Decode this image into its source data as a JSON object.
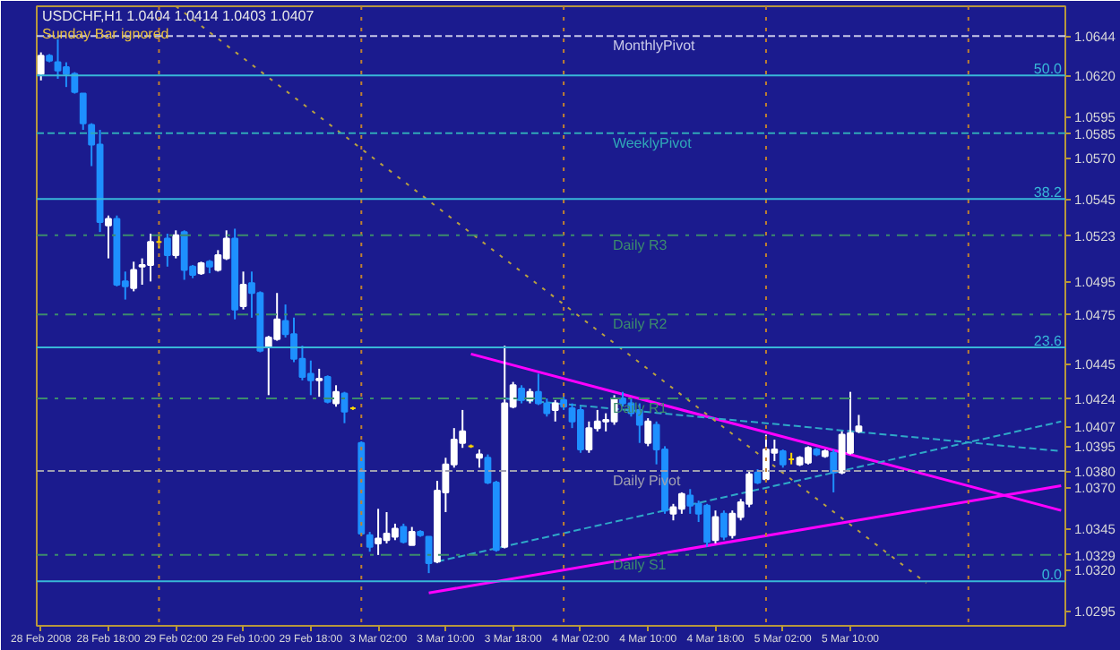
{
  "chart_data": {
    "type": "candlestick",
    "title": "USDCHF,H1  1.0404 1.0414 1.0403 1.0407",
    "annotations": [
      "Sunday Bar ignored",
      {
        "text": "50.0",
        "y": 1.062
      },
      {
        "text": "38.2",
        "y": 1.0545
      },
      {
        "text": "23.6",
        "y": 1.0455
      },
      {
        "text": "0.0",
        "y": 1.0313
      }
    ],
    "categories": [
      "28 Feb 2008",
      null,
      null,
      null,
      null,
      null,
      null,
      null,
      "28 Feb 18:00",
      null,
      null,
      null,
      null,
      null,
      null,
      null,
      "29 Feb 02:00",
      null,
      null,
      null,
      null,
      null,
      null,
      null,
      "29 Feb 10:00",
      null,
      null,
      null,
      null,
      null,
      null,
      null,
      "29 Feb 18:00",
      null,
      null,
      null,
      null,
      null,
      null,
      null,
      "3 Mar 02:00",
      null,
      null,
      null,
      null,
      null,
      null,
      null,
      "3 Mar 10:00",
      null,
      null,
      null,
      null,
      null,
      null,
      null,
      "3 Mar 18:00",
      null,
      null,
      null,
      null,
      null,
      null,
      null,
      "4 Mar 02:00",
      null,
      null,
      null,
      null,
      null,
      null,
      null,
      "4 Mar 10:00",
      null,
      null,
      null,
      null,
      null,
      null,
      null,
      "4 Mar 18:00",
      null,
      null,
      null,
      null,
      null,
      null,
      null,
      "5 Mar 02:00",
      null,
      null,
      null,
      null,
      null,
      null,
      null,
      "5 Mar 10:00",
      null,
      null,
      null,
      null,
      null,
      null,
      null,
      null,
      null,
      null,
      null,
      null,
      null,
      null,
      null,
      null,
      null,
      null,
      null,
      null,
      null,
      null,
      null,
      null,
      null
    ],
    "ohlc": [
      [
        1.0621,
        1.0634,
        1.0617,
        1.0632
      ],
      [
        1.0632,
        1.0633,
        1.0628,
        1.0629
      ],
      [
        1.0628,
        1.0642,
        1.0618,
        1.0623
      ],
      [
        1.0625,
        1.0628,
        1.0613,
        1.0621
      ],
      [
        1.0621,
        1.0622,
        1.0609,
        1.061
      ],
      [
        1.0609,
        1.0609,
        1.0587,
        1.0591
      ],
      [
        1.059,
        1.0591,
        1.0565,
        1.0578
      ],
      [
        1.0578,
        1.0587,
        1.0525,
        1.0531
      ],
      [
        1.0529,
        1.0535,
        1.0509,
        1.0533
      ],
      [
        1.0533,
        1.0535,
        1.0492,
        1.0493
      ],
      [
        1.0495,
        1.0501,
        1.0484,
        1.0492
      ],
      [
        1.0491,
        1.0507,
        1.0489,
        1.0502
      ],
      [
        1.0504,
        1.0509,
        1.0493,
        1.0505
      ],
      [
        1.0505,
        1.0524,
        1.0495,
        1.0519
      ],
      [
        1.0519,
        1.0523,
        1.0515,
        1.0519
      ],
      [
        1.0521,
        1.0524,
        1.0504,
        1.0511
      ],
      [
        1.0511,
        1.0526,
        1.0509,
        1.0523
      ],
      [
        1.0525,
        1.0526,
        1.0496,
        1.0502
      ],
      [
        1.0504,
        1.0505,
        1.0497,
        1.0499
      ],
      [
        1.05,
        1.0507,
        1.0499,
        1.0506
      ],
      [
        1.0507,
        1.0508,
        1.05,
        1.0504
      ],
      [
        1.0502,
        1.0514,
        1.0501,
        1.0511
      ],
      [
        1.0509,
        1.0526,
        1.0508,
        1.0521
      ],
      [
        1.0521,
        1.0527,
        1.0472,
        1.0478
      ],
      [
        1.048,
        1.0501,
        1.0478,
        1.0493
      ],
      [
        1.0494,
        1.0501,
        1.0473,
        1.0488
      ],
      [
        1.0488,
        1.0489,
        1.0452,
        1.0453
      ],
      [
        1.0455,
        1.0462,
        1.0426,
        1.0461
      ],
      [
        1.046,
        1.0488,
        1.0459,
        1.0472
      ],
      [
        1.0471,
        1.0481,
        1.0461,
        1.0463
      ],
      [
        1.0463,
        1.0473,
        1.0446,
        1.0448
      ],
      [
        1.0448,
        1.0456,
        1.0435,
        1.0437
      ],
      [
        1.0439,
        1.0447,
        1.0426,
        1.0435
      ],
      [
        1.0435,
        1.0442,
        1.0425,
        1.0436
      ],
      [
        1.0437,
        1.0438,
        1.0421,
        1.0422
      ],
      [
        1.0421,
        1.0432,
        1.0419,
        1.0428
      ],
      [
        1.0427,
        1.0428,
        1.0409,
        1.0416
      ],
      [
        1.0418,
        1.0419,
        1.0417,
        1.0418
      ],
      [
        1.0397,
        1.0398,
        1.0341,
        1.0342
      ],
      [
        1.0341,
        1.0343,
        1.0331,
        1.0334
      ],
      [
        1.0336,
        1.0357,
        1.0329,
        1.0339
      ],
      [
        1.0338,
        1.0355,
        1.0336,
        1.0342
      ],
      [
        1.034,
        1.0348,
        1.0338,
        1.0345
      ],
      [
        1.0346,
        1.0348,
        1.0336,
        1.0337
      ],
      [
        1.0335,
        1.0346,
        1.0335,
        1.0343
      ],
      [
        1.0343,
        1.0344,
        1.034,
        1.0341
      ],
      [
        1.034,
        1.034,
        1.0318,
        1.0324
      ],
      [
        1.0325,
        1.0374,
        1.0324,
        1.0368
      ],
      [
        1.0367,
        1.0388,
        1.0355,
        1.0384
      ],
      [
        1.0384,
        1.0406,
        1.0382,
        1.0399
      ],
      [
        1.0397,
        1.0417,
        1.0394,
        1.0404
      ],
      [
        1.0395,
        1.0396,
        1.0394,
        1.0395
      ],
      [
        1.0388,
        1.0393,
        1.0382,
        1.039
      ],
      [
        1.0388,
        1.039,
        1.0372,
        1.0373
      ],
      [
        1.0373,
        1.0374,
        1.0331,
        1.0332
      ],
      [
        1.0334,
        1.0456,
        1.0333,
        1.0421
      ],
      [
        1.0419,
        1.0434,
        1.0418,
        1.0432
      ],
      [
        1.043,
        1.0432,
        1.0421,
        1.0423
      ],
      [
        1.0423,
        1.043,
        1.0421,
        1.0428
      ],
      [
        1.0428,
        1.0439,
        1.042,
        1.0421
      ],
      [
        1.0421,
        1.0424,
        1.0413,
        1.0415
      ],
      [
        1.0417,
        1.0423,
        1.041,
        1.0421
      ],
      [
        1.0423,
        1.0426,
        1.0417,
        1.0419
      ],
      [
        1.0418,
        1.0421,
        1.0406,
        1.041
      ],
      [
        1.0417,
        1.0419,
        1.0391,
        1.0393
      ],
      [
        1.0393,
        1.041,
        1.0391,
        1.0406
      ],
      [
        1.0406,
        1.0417,
        1.0404,
        1.041
      ],
      [
        1.041,
        1.0415,
        1.0404,
        1.0411
      ],
      [
        1.041,
        1.0426,
        1.0408,
        1.0424
      ],
      [
        1.0424,
        1.0428,
        1.0419,
        1.0421
      ],
      [
        1.0421,
        1.0424,
        1.0413,
        1.0415
      ],
      [
        1.0417,
        1.0421,
        1.0397,
        1.0408
      ],
      [
        1.0397,
        1.0412,
        1.0395,
        1.041
      ],
      [
        1.0408,
        1.041,
        1.0384,
        1.0393
      ],
      [
        1.0393,
        1.0395,
        1.0354,
        1.0356
      ],
      [
        1.0354,
        1.036,
        1.035,
        1.0358
      ],
      [
        1.0357,
        1.0367,
        1.0354,
        1.0366
      ],
      [
        1.0365,
        1.0369,
        1.0354,
        1.0359
      ],
      [
        1.036,
        1.0362,
        1.0349,
        1.0354
      ],
      [
        1.0359,
        1.036,
        1.0334,
        1.0337
      ],
      [
        1.0338,
        1.0356,
        1.0336,
        1.0352
      ],
      [
        1.0354,
        1.0356,
        1.0338,
        1.034
      ],
      [
        1.0341,
        1.0356,
        1.0339,
        1.0354
      ],
      [
        1.0352,
        1.0363,
        1.035,
        1.0361
      ],
      [
        1.036,
        1.038,
        1.0358,
        1.0378
      ],
      [
        1.0379,
        1.0381,
        1.0372,
        1.0373
      ],
      [
        1.0375,
        1.0402,
        1.0373,
        1.0393
      ],
      [
        1.0391,
        1.0399,
        1.0386,
        1.0393
      ],
      [
        1.0392,
        1.0393,
        1.0382,
        1.0384
      ],
      [
        1.0387,
        1.0391,
        1.0384,
        1.0387
      ],
      [
        1.0384,
        1.0389,
        1.0383,
        1.0388
      ],
      [
        1.0385,
        1.0395,
        1.0384,
        1.0394
      ],
      [
        1.0393,
        1.0394,
        1.0389,
        1.039
      ],
      [
        1.0389,
        1.0393,
        1.0388,
        1.0392
      ],
      [
        1.0391,
        1.0393,
        1.0367,
        1.0379
      ],
      [
        1.0379,
        1.0404,
        1.0378,
        1.0402
      ],
      [
        1.0391,
        1.0428,
        1.039,
        1.0403
      ],
      [
        1.0404,
        1.0414,
        1.0403,
        1.0407
      ],
      null,
      null,
      null,
      null,
      null,
      null,
      null,
      null,
      null,
      null,
      null,
      null,
      null,
      null,
      null,
      null,
      null,
      null,
      null,
      null,
      null,
      null,
      null,
      null
    ],
    "colors": [
      "#ffffff",
      "#1e90ff",
      "#1e90ff",
      "#1e90ff",
      "#1e90ff",
      "#1e90ff",
      "#1e90ff",
      "#1e90ff",
      "#ffffff",
      "#1e90ff",
      "#1e90ff",
      "#ffffff",
      "#ffffff",
      "#ffffff",
      "#ffd700",
      "#1e90ff",
      "#ffffff",
      "#1e90ff",
      "#1e90ff",
      "#ffffff",
      "#1e90ff",
      "#ffffff",
      "#ffffff",
      "#1e90ff",
      "#ffffff",
      "#1e90ff",
      "#1e90ff",
      "#ffffff",
      "#ffffff",
      "#1e90ff",
      "#1e90ff",
      "#1e90ff",
      "#1e90ff",
      "#ffffff",
      "#1e90ff",
      "#ffffff",
      "#1e90ff",
      "#ffd700",
      "#1e90ff",
      "#1e90ff",
      "#ffffff",
      "#ffffff",
      "#ffffff",
      "#1e90ff",
      "#ffffff",
      "#1e90ff",
      "#1e90ff",
      "#ffffff",
      "#ffffff",
      "#ffffff",
      "#ffffff",
      "#ffd700",
      "#ffffff",
      "#1e90ff",
      "#1e90ff",
      "#ffffff",
      "#ffffff",
      "#1e90ff",
      "#ffffff",
      "#1e90ff",
      "#1e90ff",
      "#ffffff",
      "#1e90ff",
      "#1e90ff",
      "#1e90ff",
      "#ffffff",
      "#ffffff",
      "#ffffff",
      "#ffffff",
      "#1e90ff",
      "#1e90ff",
      "#1e90ff",
      "#ffffff",
      "#1e90ff",
      "#1e90ff",
      "#ffffff",
      "#ffffff",
      "#1e90ff",
      "#1e90ff",
      "#1e90ff",
      "#ffffff",
      "#1e90ff",
      "#ffffff",
      "#ffffff",
      "#ffffff",
      "#1e90ff",
      "#ffffff",
      "#ffffff",
      "#1e90ff",
      "#ffd700",
      "#ffffff",
      "#ffffff",
      "#1e90ff",
      "#ffffff",
      "#1e90ff",
      "#ffffff",
      "#ffffff",
      "#ffffff",
      null,
      null,
      null,
      null,
      null,
      null,
      null,
      null,
      null,
      null,
      null,
      null,
      null,
      null,
      null,
      null,
      null,
      null,
      null,
      null,
      null,
      null,
      null,
      null
    ],
    "series": [
      {
        "type": "line",
        "color": "#ff00ff",
        "line_style": "solid",
        "values": [
          null,
          null,
          null,
          null,
          null,
          null,
          null,
          null,
          null,
          null,
          null,
          null,
          null,
          null,
          null,
          null,
          null,
          null,
          null,
          null,
          null,
          null,
          null,
          null,
          null,
          null,
          null,
          null,
          null,
          null,
          null,
          null,
          null,
          null,
          null,
          null,
          null,
          null,
          null,
          null,
          null,
          null,
          null,
          null,
          null,
          null,
          null,
          null,
          null,
          null,
          null,
          1.0451,
          null,
          null,
          null,
          null,
          null,
          null,
          null,
          null,
          null,
          null,
          null,
          null,
          null,
          null,
          null,
          null,
          null,
          null,
          null,
          null,
          null,
          null,
          null,
          null,
          null,
          null,
          null,
          null,
          null,
          null,
          null,
          null,
          null,
          null,
          null,
          null,
          null,
          null,
          null,
          null,
          null,
          null,
          null,
          null,
          null,
          null,
          null,
          null,
          null,
          null,
          null,
          null,
          null,
          null,
          null,
          null,
          null,
          null,
          null,
          null,
          null,
          null,
          null,
          null,
          null,
          null,
          null,
          null,
          null,
          1.0356
        ]
      },
      {
        "type": "line",
        "color": "#ff00ff",
        "line_style": "solid",
        "values": [
          null,
          null,
          null,
          null,
          null,
          null,
          null,
          null,
          null,
          null,
          null,
          null,
          null,
          null,
          null,
          null,
          null,
          null,
          null,
          null,
          null,
          null,
          null,
          null,
          null,
          null,
          null,
          null,
          null,
          null,
          null,
          null,
          null,
          null,
          null,
          null,
          null,
          null,
          null,
          null,
          null,
          null,
          null,
          null,
          null,
          null,
          1.0306,
          null,
          null,
          null,
          null,
          null,
          null,
          null,
          null,
          null,
          null,
          null,
          null,
          null,
          null,
          null,
          null,
          null,
          null,
          null,
          null,
          null,
          null,
          null,
          null,
          null,
          null,
          null,
          null,
          null,
          null,
          null,
          null,
          null,
          null,
          null,
          null,
          null,
          null,
          null,
          null,
          null,
          null,
          null,
          null,
          null,
          null,
          null,
          null,
          null,
          null,
          null,
          null,
          null,
          null,
          null,
          null,
          null,
          null,
          null,
          null,
          null,
          null,
          null,
          null,
          null,
          null,
          null,
          null,
          null,
          null,
          null,
          null,
          null,
          null,
          1.0371
        ]
      },
      {
        "type": "line",
        "color": "#2fa8c8",
        "line_style": "dashed",
        "values": [
          null,
          null,
          null,
          null,
          null,
          null,
          null,
          null,
          null,
          null,
          null,
          null,
          null,
          null,
          null,
          null,
          null,
          null,
          null,
          null,
          null,
          null,
          null,
          null,
          null,
          null,
          null,
          null,
          null,
          null,
          null,
          null,
          null,
          null,
          null,
          null,
          null,
          null,
          null,
          null,
          null,
          null,
          null,
          null,
          null,
          null,
          null,
          1.0325,
          null,
          null,
          null,
          null,
          null,
          null,
          null,
          null,
          null,
          null,
          null,
          null,
          null,
          null,
          null,
          null,
          null,
          null,
          null,
          null,
          null,
          null,
          null,
          null,
          null,
          null,
          null,
          null,
          null,
          null,
          null,
          null,
          null,
          null,
          null,
          null,
          null,
          null,
          null,
          null,
          null,
          null,
          null,
          null,
          null,
          null,
          null,
          null,
          null,
          null,
          null,
          null,
          null,
          null,
          null,
          null,
          null,
          null,
          null,
          null,
          null,
          null,
          null,
          null,
          null,
          null,
          null,
          null,
          null,
          null,
          null,
          null,
          null,
          1.041
        ]
      },
      {
        "type": "line",
        "color": "#2fa8c8",
        "line_style": "dashed",
        "values": [
          null,
          null,
          null,
          null,
          null,
          null,
          null,
          null,
          null,
          null,
          null,
          null,
          null,
          null,
          null,
          null,
          null,
          null,
          null,
          null,
          null,
          null,
          null,
          null,
          null,
          null,
          null,
          null,
          null,
          null,
          null,
          null,
          null,
          null,
          null,
          null,
          null,
          null,
          null,
          null,
          null,
          null,
          null,
          null,
          null,
          null,
          null,
          null,
          null,
          null,
          null,
          null,
          null,
          null,
          null,
          1.0424,
          null,
          null,
          null,
          null,
          null,
          null,
          null,
          null,
          null,
          null,
          null,
          null,
          null,
          null,
          null,
          null,
          null,
          null,
          null,
          null,
          null,
          null,
          null,
          null,
          null,
          null,
          null,
          null,
          null,
          null,
          null,
          null,
          null,
          null,
          null,
          null,
          null,
          null,
          null,
          null,
          null,
          null,
          null,
          null,
          null,
          null,
          null,
          null,
          null,
          null,
          null,
          null,
          null,
          null,
          null,
          null,
          null,
          null,
          null,
          null,
          null,
          null,
          null,
          null,
          null,
          1.0392
        ]
      },
      {
        "type": "line",
        "color": "#b8a040",
        "line_style": "dotted",
        "values": [
          null,
          null,
          null,
          null,
          null,
          null,
          null,
          null,
          null,
          null,
          null,
          null,
          null,
          null,
          null,
          null,
          1.0662,
          null,
          null,
          null,
          null,
          null,
          null,
          null,
          null,
          null,
          null,
          null,
          null,
          null,
          null,
          null,
          null,
          null,
          null,
          null,
          null,
          null,
          null,
          null,
          null,
          null,
          null,
          null,
          null,
          null,
          null,
          null,
          null,
          null,
          null,
          null,
          null,
          null,
          null,
          null,
          null,
          null,
          null,
          null,
          null,
          null,
          null,
          null,
          null,
          null,
          null,
          null,
          null,
          null,
          null,
          null,
          null,
          null,
          null,
          null,
          null,
          null,
          null,
          null,
          null,
          null,
          null,
          null,
          null,
          null,
          null,
          null,
          null,
          null,
          null,
          null,
          null,
          null,
          null,
          null,
          null,
          null,
          null,
          null,
          null,
          null,
          null,
          null,
          null,
          1.0312,
          null,
          null,
          null,
          null,
          null,
          null,
          null,
          null,
          null,
          null,
          null,
          null,
          null,
          null,
          null,
          null
        ]
      }
    ],
    "ref_lines": [
      {
        "axis": "y",
        "value": 1.0644,
        "label": "MonthlyPivot",
        "color": "#c8c8e8",
        "line_style": "dashed"
      },
      {
        "axis": "y",
        "value": 1.062,
        "color": "#38b8d8",
        "line_style": "solid"
      },
      {
        "axis": "y",
        "value": 1.0585,
        "label": "WeeklyPivot",
        "color": "#30a8b8",
        "line_style": "dashed"
      },
      {
        "axis": "y",
        "value": 1.0545,
        "color": "#38b8d8",
        "line_style": "solid"
      },
      {
        "axis": "y",
        "value": 1.0523,
        "label": "Daily R3",
        "color": "#3c8c6c",
        "line_style": "dashdot"
      },
      {
        "axis": "y",
        "value": 1.0475,
        "label": "Daily R2",
        "color": "#3c8c6c",
        "line_style": "dashdot"
      },
      {
        "axis": "y",
        "value": 1.0455,
        "color": "#38b8d8",
        "line_style": "solid"
      },
      {
        "axis": "y",
        "value": 1.0424,
        "label": "Daily R1",
        "color": "#3c8c6c",
        "line_style": "dashdot"
      },
      {
        "axis": "y",
        "value": 1.038,
        "label": "Daily Pivot",
        "color": "#a0a0b0",
        "line_style": "dashed"
      },
      {
        "axis": "y",
        "value": 1.0329,
        "label": "Daily S1",
        "color": "#3c8c6c",
        "line_style": "dashdot"
      },
      {
        "axis": "y",
        "value": 1.0313,
        "color": "#38b8d8",
        "line_style": "solid"
      }
    ],
    "grid": "x",
    "ylim": [
      1.0286,
      1.0662
    ],
    "yticks": [
      {
        "value": 1.0644,
        "label": "1.0644"
      },
      {
        "value": 1.062,
        "label": "1.0620"
      },
      {
        "value": 1.0595,
        "label": "1.0595"
      },
      {
        "value": 1.0585,
        "label": "1.0585"
      },
      {
        "value": 1.057,
        "label": "1.0570"
      },
      {
        "value": 1.0545,
        "label": "1.0545"
      },
      {
        "value": 1.0523,
        "label": "1.0523"
      },
      {
        "value": 1.0495,
        "label": "1.0495"
      },
      {
        "value": 1.0475,
        "label": "1.0475"
      },
      {
        "value": 1.0445,
        "label": "1.0445"
      },
      {
        "value": 1.0424,
        "label": "1.0424"
      },
      {
        "value": 1.0407,
        "label": "1.0407"
      },
      {
        "value": 1.0395,
        "label": "1.0395"
      },
      {
        "value": 1.038,
        "label": "1.0380"
      },
      {
        "value": 1.037,
        "label": "1.0370"
      },
      {
        "value": 1.0345,
        "label": "1.0345"
      },
      {
        "value": 1.0329,
        "label": "1.0329"
      },
      {
        "value": 1.032,
        "label": "1.0320"
      },
      {
        "value": 1.0295,
        "label": "1.0295"
      }
    ]
  }
}
